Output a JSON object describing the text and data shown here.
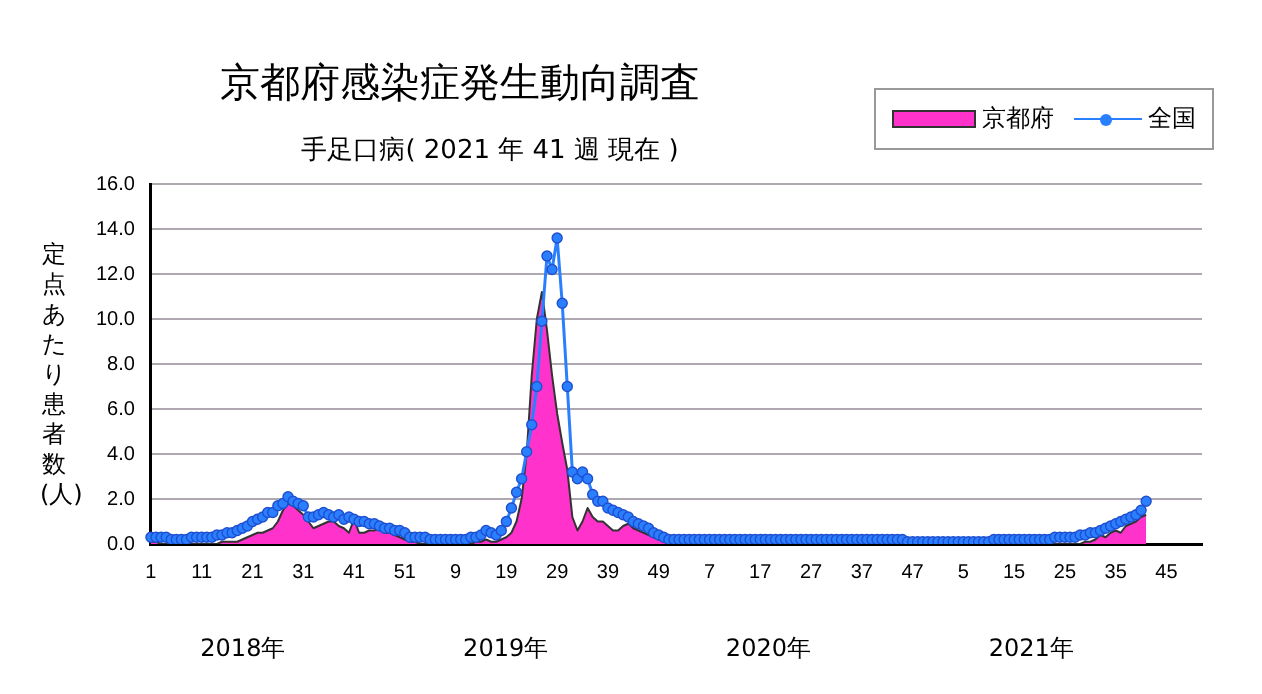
{
  "chart_data": {
    "type": "area",
    "title": "京都府感染症発生動向調査",
    "subtitle": "手足口病( 2021 年 41 週 現在 )",
    "ylabel": "定点あたり患者数(人)",
    "annotations": [
      "2018年",
      "2019年",
      "2020年",
      "2021年"
    ],
    "categories": [
      "1",
      null,
      null,
      null,
      null,
      null,
      null,
      null,
      null,
      null,
      "11",
      null,
      null,
      null,
      null,
      null,
      null,
      null,
      null,
      null,
      "21",
      null,
      null,
      null,
      null,
      null,
      null,
      null,
      null,
      null,
      "31",
      null,
      null,
      null,
      null,
      null,
      null,
      null,
      null,
      null,
      "41",
      null,
      null,
      null,
      null,
      null,
      null,
      null,
      null,
      null,
      "51",
      null,
      null,
      null,
      null,
      null,
      null,
      null,
      null,
      null,
      "9",
      null,
      null,
      null,
      null,
      null,
      null,
      null,
      null,
      null,
      "19",
      null,
      null,
      null,
      null,
      null,
      null,
      null,
      null,
      null,
      "29",
      null,
      null,
      null,
      null,
      null,
      null,
      null,
      null,
      null,
      "39",
      null,
      null,
      null,
      null,
      null,
      null,
      null,
      null,
      null,
      "49",
      null,
      null,
      null,
      null,
      null,
      null,
      null,
      null,
      null,
      "7",
      null,
      null,
      null,
      null,
      null,
      null,
      null,
      null,
      null,
      "17",
      null,
      null,
      null,
      null,
      null,
      null,
      null,
      null,
      null,
      "27",
      null,
      null,
      null,
      null,
      null,
      null,
      null,
      null,
      null,
      "37",
      null,
      null,
      null,
      null,
      null,
      null,
      null,
      null,
      null,
      "47",
      null,
      null,
      null,
      null,
      null,
      null,
      null,
      null,
      null,
      "5",
      null,
      null,
      null,
      null,
      null,
      null,
      null,
      null,
      null,
      "15",
      null,
      null,
      null,
      null,
      null,
      null,
      null,
      null,
      null,
      "25",
      null,
      null,
      null,
      null,
      null,
      null,
      null,
      null,
      null,
      "35",
      null,
      null,
      null,
      null,
      null,
      null,
      null,
      null,
      null,
      "45",
      null,
      null,
      null,
      null,
      null,
      null,
      null
    ],
    "series": [
      {
        "name": "京都府",
        "color": "#ff33cc",
        "values": [
          0.1,
          0.1,
          0,
          0,
          0,
          0,
          0,
          0,
          0,
          0,
          0,
          0,
          0,
          0,
          0.1,
          0.1,
          0.1,
          0.1,
          0.2,
          0.3,
          0.4,
          0.5,
          0.5,
          0.6,
          0.7,
          1.0,
          1.5,
          1.8,
          1.7,
          1.5,
          1.3,
          1.0,
          0.7,
          0.8,
          0.9,
          1.0,
          1.0,
          0.8,
          0.7,
          0.5,
          1.1,
          0.5,
          0.5,
          0.6,
          0.6,
          0.7,
          0.5,
          0.5,
          0.4,
          0.3,
          0.2,
          0.1,
          0.1,
          0,
          0,
          0,
          0,
          0,
          0,
          0,
          0,
          0,
          0,
          0,
          0.1,
          0.1,
          0.2,
          0.1,
          0.1,
          0.2,
          0.3,
          0.5,
          1.0,
          2.0,
          4.0,
          7.5,
          10.0,
          11.2,
          9.5,
          7.5,
          5.8,
          4.5,
          3.3,
          1.2,
          0.6,
          1.0,
          1.6,
          1.2,
          1.0,
          1.0,
          0.8,
          0.6,
          0.6,
          0.8,
          0.9,
          0.7,
          0.6,
          0.5,
          0.4,
          0.3,
          0.2,
          0.2,
          0.1,
          0.1,
          0.1,
          0.1,
          0.1,
          0.1,
          0,
          0,
          0,
          0,
          0,
          0,
          0,
          0,
          0,
          0,
          0,
          0,
          0,
          0,
          0,
          0,
          0,
          0,
          0,
          0,
          0,
          0,
          0,
          0,
          0,
          0,
          0,
          0,
          0,
          0,
          0,
          0,
          0,
          0,
          0,
          0,
          0,
          0,
          0,
          0,
          0,
          0,
          0,
          0,
          0,
          0,
          0,
          0,
          0,
          0,
          0,
          0,
          0,
          0,
          0,
          0,
          0,
          0,
          0,
          0,
          0,
          0,
          0,
          0,
          0,
          0,
          0,
          0,
          0,
          0,
          0,
          0,
          0,
          0,
          0,
          0,
          0.1,
          0.1,
          0.2,
          0.4,
          0.3,
          0.5,
          0.6,
          0.5,
          0.8,
          0.9,
          1.0,
          1.2,
          1.3,
          null,
          null,
          null,
          null,
          null,
          null,
          null,
          null,
          null,
          null,
          null
        ]
      },
      {
        "name": "全国",
        "type": "line",
        "marker": "circle",
        "color": "#2a7fff",
        "values": [
          0.3,
          0.3,
          0.3,
          0.3,
          0.2,
          0.2,
          0.2,
          0.2,
          0.3,
          0.3,
          0.3,
          0.3,
          0.3,
          0.4,
          0.4,
          0.5,
          0.5,
          0.6,
          0.7,
          0.8,
          1.0,
          1.1,
          1.2,
          1.4,
          1.4,
          1.7,
          1.8,
          2.1,
          1.9,
          1.8,
          1.7,
          1.2,
          1.2,
          1.3,
          1.4,
          1.3,
          1.2,
          1.3,
          1.1,
          1.2,
          1.1,
          1.0,
          1.0,
          0.9,
          0.9,
          0.8,
          0.7,
          0.7,
          0.6,
          0.6,
          0.5,
          0.3,
          0.3,
          0.3,
          0.3,
          0.2,
          0.2,
          0.2,
          0.2,
          0.2,
          0.2,
          0.2,
          0.2,
          0.3,
          0.3,
          0.4,
          0.6,
          0.5,
          0.4,
          0.6,
          1.0,
          1.6,
          2.3,
          2.9,
          4.1,
          5.3,
          7.0,
          9.9,
          12.8,
          12.2,
          13.6,
          10.7,
          7.0,
          3.2,
          2.9,
          3.2,
          2.9,
          2.2,
          1.9,
          1.9,
          1.6,
          1.5,
          1.4,
          1.3,
          1.2,
          1.0,
          0.9,
          0.8,
          0.7,
          0.5,
          0.4,
          0.3,
          0.2,
          0.2,
          0.2,
          0.2,
          0.2,
          0.2,
          0.2,
          0.2,
          0.2,
          0.2,
          0.2,
          0.2,
          0.2,
          0.2,
          0.2,
          0.2,
          0.2,
          0.2,
          0.2,
          0.2,
          0.2,
          0.2,
          0.2,
          0.2,
          0.2,
          0.2,
          0.2,
          0.2,
          0.2,
          0.2,
          0.2,
          0.2,
          0.2,
          0.2,
          0.2,
          0.2,
          0.2,
          0.2,
          0.2,
          0.2,
          0.2,
          0.2,
          0.2,
          0.2,
          0.2,
          0.2,
          0.2,
          0.1,
          0.1,
          0.1,
          0.1,
          0.1,
          0.1,
          0.1,
          0.1,
          0.1,
          0.1,
          0.1,
          0.1,
          0.1,
          0.1,
          0.1,
          0.1,
          0.1,
          0.2,
          0.2,
          0.2,
          0.2,
          0.2,
          0.2,
          0.2,
          0.2,
          0.2,
          0.2,
          0.2,
          0.2,
          0.3,
          0.3,
          0.3,
          0.3,
          0.3,
          0.4,
          0.4,
          0.5,
          0.5,
          0.6,
          0.7,
          0.8,
          0.9,
          1.0,
          1.1,
          1.2,
          1.3,
          1.5,
          1.9,
          null,
          null,
          null,
          null,
          null,
          null,
          null,
          null,
          null,
          null,
          null
        ]
      }
    ],
    "ylim": [
      0,
      16
    ],
    "yticks": [
      {
        "value": 0,
        "label": "0.0"
      },
      {
        "value": 2,
        "label": "2.0"
      },
      {
        "value": 4,
        "label": "4.0"
      },
      {
        "value": 6,
        "label": "6.0"
      },
      {
        "value": 8,
        "label": "8.0"
      },
      {
        "value": 10,
        "label": "10.0"
      },
      {
        "value": 12,
        "label": "12.0"
      },
      {
        "value": 14,
        "label": "14.0"
      },
      {
        "value": 16,
        "label": "16.0"
      }
    ],
    "grid": "y",
    "legend": "top right"
  }
}
